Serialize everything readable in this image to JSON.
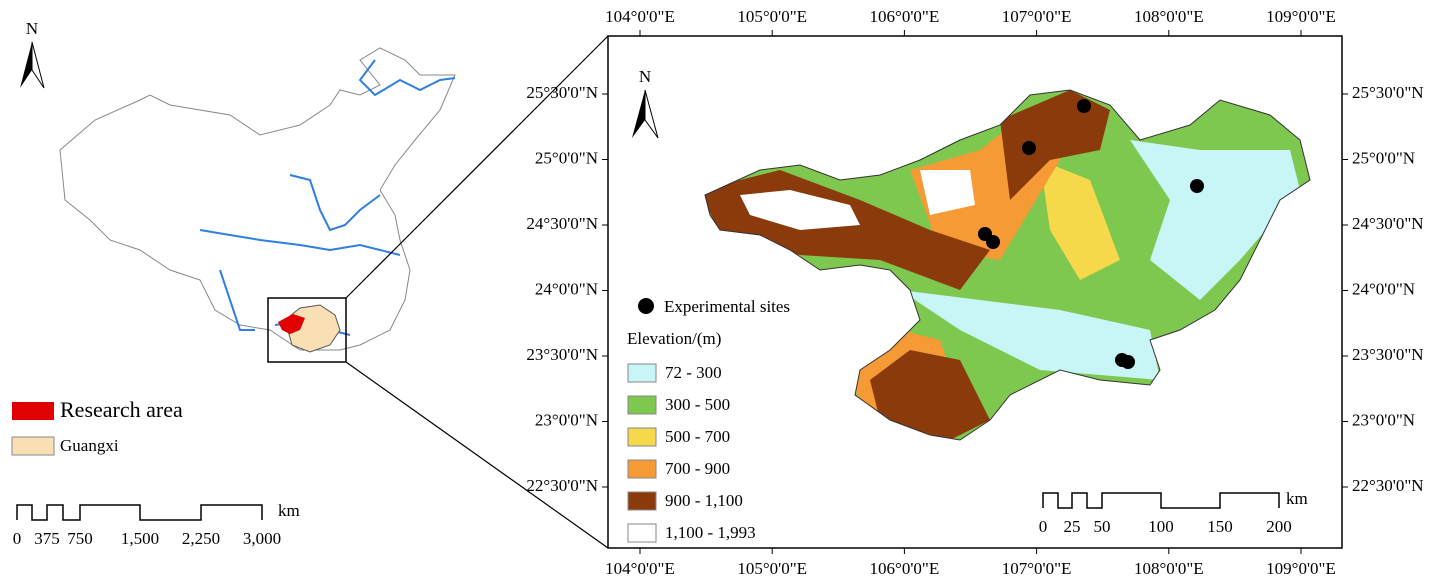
{
  "overview_map": {
    "north_label": "N",
    "legend": [
      "Research area",
      "Guangxi"
    ],
    "scale": {
      "labels": [
        "0",
        "375",
        "750",
        "1,500",
        "2,250",
        "3,000"
      ],
      "unit": "km"
    }
  },
  "detail_map": {
    "north_label": "N",
    "longitudes": [
      "104°0'0\"E",
      "105°0'0\"E",
      "106°0'0\"E",
      "107°0'0\"E",
      "108°0'0\"E",
      "109°0'0\"E"
    ],
    "latitudes": [
      "25°30'0\"N",
      "25°0'0\"N",
      "24°30'0\"N",
      "24°0'0\"N",
      "23°30'0\"N",
      "23°0'0\"N",
      "22°30'0\"N"
    ],
    "sites_label": "Experimental sites",
    "elevation_title": "Elevation/(m)",
    "elevation_classes": [
      "72 - 300",
      "300 - 500",
      "500 - 700",
      "700 - 900",
      "900 - 1,100",
      "1,100 - 1,993"
    ],
    "scale": {
      "labels": [
        "0",
        "25",
        "50",
        "100",
        "150",
        "200"
      ],
      "unit": "km"
    }
  }
}
